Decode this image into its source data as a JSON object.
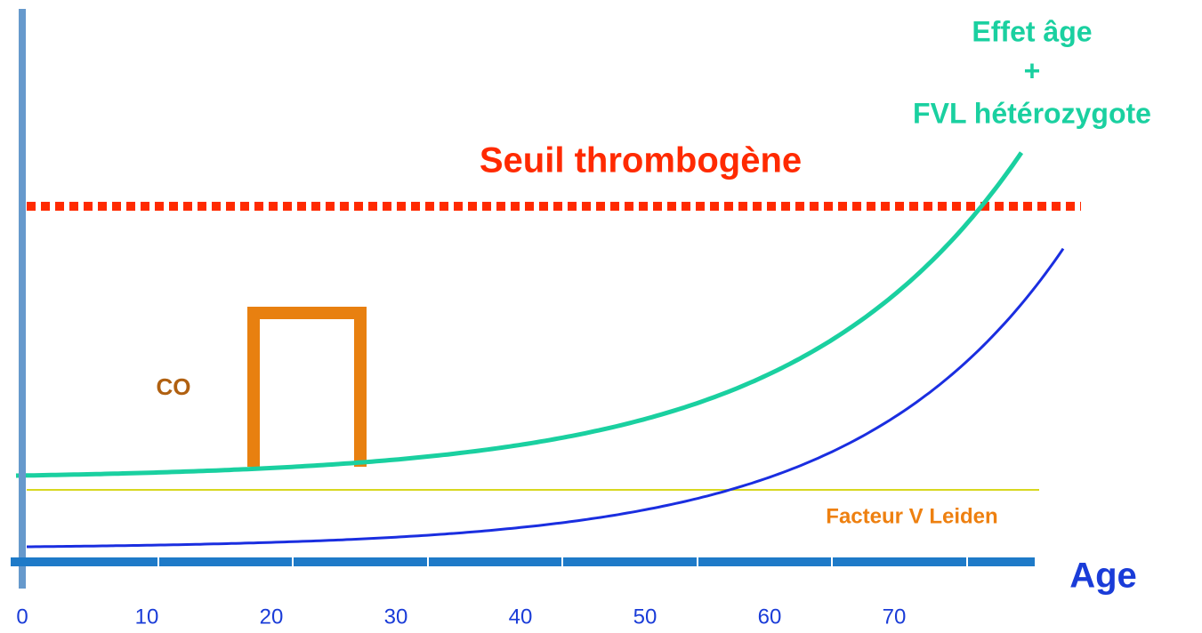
{
  "title": "Seuil thrombogène",
  "curve_label": [
    "Effet âge",
    "+",
    "FVL hétérozygote"
  ],
  "line_label": "Facteur V Leiden",
  "box_label": "CO",
  "axis": {
    "label": "Age",
    "ticks": [
      0,
      10,
      20,
      30,
      40,
      50,
      60,
      70
    ]
  }
}
